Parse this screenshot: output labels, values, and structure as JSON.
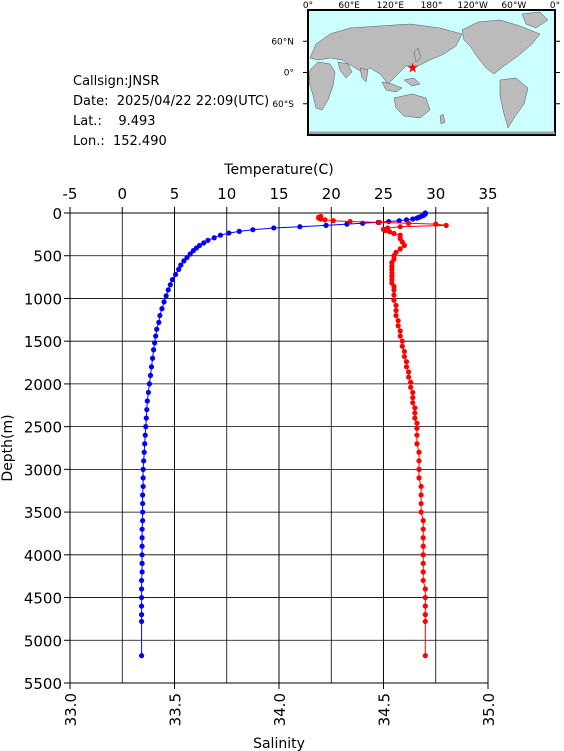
{
  "station": {
    "callsign": "Callsign:JNSR",
    "date": "Date:  2025/04/22 22:09(UTC)",
    "lat": "Lat.:    9.493",
    "lon": "Lon.:  152.490"
  },
  "map": {
    "top_labels": [
      "0°",
      "60°E",
      "120°E",
      "180°",
      "120°W",
      "60°W",
      "0°"
    ],
    "side_labels": [
      "60°N",
      "0°",
      "60°S"
    ],
    "station_lat": 9.493,
    "station_lon": 152.49,
    "colors": {
      "ocean": "#ccffff",
      "land": "#bbbbbb",
      "marker": "#ff0000"
    }
  },
  "chart_data": {
    "type": "scatter",
    "xlabel_top": "Temperature(C)",
    "xlabel_bottom": "Salinity",
    "ylabel": "Depth(m)",
    "temperature_range": [
      -5,
      35
    ],
    "salinity_range": [
      33.0,
      35.0
    ],
    "depth_range": [
      0,
      5500
    ],
    "temperature_ticks": [
      "-5",
      "0",
      "5",
      "10",
      "15",
      "20",
      "25",
      "30",
      "35"
    ],
    "salinity_ticks": [
      "33.0",
      "33.5",
      "34.0",
      "34.5",
      "35.0"
    ],
    "depth_ticks": [
      "0",
      "500",
      "1000",
      "1500",
      "2000",
      "2500",
      "3000",
      "3500",
      "4000",
      "4500",
      "5000",
      "5500"
    ],
    "grid": true,
    "series": [
      {
        "variable": "temperature",
        "color": "#0000ff",
        "points": [
          [
            29.0,
            0
          ],
          [
            29.0,
            10
          ],
          [
            28.9,
            20
          ],
          [
            28.8,
            30
          ],
          [
            28.6,
            40
          ],
          [
            28.4,
            50
          ],
          [
            28.2,
            60
          ],
          [
            27.8,
            70
          ],
          [
            27.2,
            80
          ],
          [
            26.5,
            90
          ],
          [
            25.5,
            100
          ],
          [
            24.5,
            110
          ],
          [
            23.0,
            120
          ],
          [
            21.5,
            130
          ],
          [
            19.5,
            145
          ],
          [
            17.0,
            160
          ],
          [
            14.5,
            175
          ],
          [
            12.5,
            195
          ],
          [
            11.2,
            215
          ],
          [
            10.2,
            235
          ],
          [
            9.4,
            260
          ],
          [
            8.8,
            290
          ],
          [
            8.2,
            320
          ],
          [
            7.8,
            350
          ],
          [
            7.4,
            380
          ],
          [
            7.1,
            410
          ],
          [
            6.8,
            440
          ],
          [
            6.5,
            480
          ],
          [
            6.2,
            520
          ],
          [
            5.9,
            560
          ],
          [
            5.6,
            610
          ],
          [
            5.4,
            660
          ],
          [
            5.1,
            720
          ],
          [
            4.8,
            780
          ],
          [
            4.6,
            840
          ],
          [
            4.4,
            900
          ],
          [
            4.2,
            970
          ],
          [
            4.0,
            1040
          ],
          [
            3.8,
            1120
          ],
          [
            3.6,
            1200
          ],
          [
            3.5,
            1280
          ],
          [
            3.3,
            1360
          ],
          [
            3.2,
            1440
          ],
          [
            3.1,
            1520
          ],
          [
            3.0,
            1600
          ],
          [
            2.9,
            1700
          ],
          [
            2.8,
            1800
          ],
          [
            2.7,
            1900
          ],
          [
            2.6,
            2000
          ],
          [
            2.5,
            2100
          ],
          [
            2.4,
            2200
          ],
          [
            2.35,
            2300
          ],
          [
            2.3,
            2400
          ],
          [
            2.25,
            2500
          ],
          [
            2.2,
            2600
          ],
          [
            2.15,
            2700
          ],
          [
            2.1,
            2800
          ],
          [
            2.05,
            2900
          ],
          [
            2.0,
            3000
          ],
          [
            2.0,
            3100
          ],
          [
            2.0,
            3200
          ],
          [
            1.95,
            3300
          ],
          [
            1.95,
            3400
          ],
          [
            1.95,
            3500
          ],
          [
            1.95,
            3600
          ],
          [
            1.9,
            3700
          ],
          [
            1.9,
            3800
          ],
          [
            1.9,
            3900
          ],
          [
            1.9,
            4000
          ],
          [
            1.9,
            4100
          ],
          [
            1.9,
            4200
          ],
          [
            1.85,
            4300
          ],
          [
            1.85,
            4400
          ],
          [
            1.85,
            4500
          ],
          [
            1.85,
            4600
          ],
          [
            1.85,
            4700
          ],
          [
            1.85,
            4780
          ],
          [
            1.85,
            5180
          ]
        ]
      },
      {
        "variable": "salinity",
        "color": "#ff0000",
        "points": [
          [
            34.2,
            40
          ],
          [
            34.19,
            50
          ],
          [
            34.19,
            60
          ],
          [
            34.2,
            70
          ],
          [
            34.22,
            80
          ],
          [
            34.26,
            90
          ],
          [
            34.34,
            100
          ],
          [
            34.48,
            110
          ],
          [
            34.62,
            120
          ],
          [
            34.75,
            130
          ],
          [
            34.8,
            145
          ],
          [
            34.58,
            160
          ],
          [
            34.52,
            175
          ],
          [
            34.5,
            190
          ],
          [
            34.51,
            205
          ],
          [
            34.53,
            220
          ],
          [
            34.55,
            240
          ],
          [
            34.58,
            260
          ],
          [
            34.58,
            300
          ],
          [
            34.59,
            340
          ],
          [
            34.6,
            380
          ],
          [
            34.58,
            420
          ],
          [
            34.56,
            460
          ],
          [
            34.55,
            500
          ],
          [
            34.55,
            540
          ],
          [
            34.54,
            580
          ],
          [
            34.54,
            620
          ],
          [
            34.54,
            660
          ],
          [
            34.54,
            700
          ],
          [
            34.54,
            740
          ],
          [
            34.54,
            780
          ],
          [
            34.54,
            820
          ],
          [
            34.55,
            860
          ],
          [
            34.55,
            900
          ],
          [
            34.55,
            960
          ],
          [
            34.55,
            1020
          ],
          [
            34.56,
            1080
          ],
          [
            34.56,
            1140
          ],
          [
            34.56,
            1200
          ],
          [
            34.57,
            1260
          ],
          [
            34.57,
            1320
          ],
          [
            34.58,
            1380
          ],
          [
            34.58,
            1440
          ],
          [
            34.59,
            1500
          ],
          [
            34.59,
            1560
          ],
          [
            34.6,
            1620
          ],
          [
            34.6,
            1680
          ],
          [
            34.61,
            1740
          ],
          [
            34.61,
            1800
          ],
          [
            34.62,
            1860
          ],
          [
            34.62,
            1920
          ],
          [
            34.63,
            1980
          ],
          [
            34.63,
            2040
          ],
          [
            34.64,
            2100
          ],
          [
            34.64,
            2160
          ],
          [
            34.64,
            2220
          ],
          [
            34.65,
            2280
          ],
          [
            34.65,
            2340
          ],
          [
            34.65,
            2400
          ],
          [
            34.66,
            2460
          ],
          [
            34.66,
            2520
          ],
          [
            34.66,
            2600
          ],
          [
            34.66,
            2700
          ],
          [
            34.67,
            2800
          ],
          [
            34.67,
            2900
          ],
          [
            34.67,
            3000
          ],
          [
            34.67,
            3100
          ],
          [
            34.68,
            3200
          ],
          [
            34.68,
            3300
          ],
          [
            34.68,
            3400
          ],
          [
            34.68,
            3500
          ],
          [
            34.69,
            3600
          ],
          [
            34.69,
            3700
          ],
          [
            34.69,
            3800
          ],
          [
            34.69,
            3900
          ],
          [
            34.69,
            4000
          ],
          [
            34.69,
            4100
          ],
          [
            34.69,
            4200
          ],
          [
            34.69,
            4300
          ],
          [
            34.7,
            4400
          ],
          [
            34.7,
            4500
          ],
          [
            34.7,
            4600
          ],
          [
            34.7,
            4700
          ],
          [
            34.7,
            4780
          ],
          [
            34.7,
            5180
          ]
        ]
      }
    ]
  }
}
